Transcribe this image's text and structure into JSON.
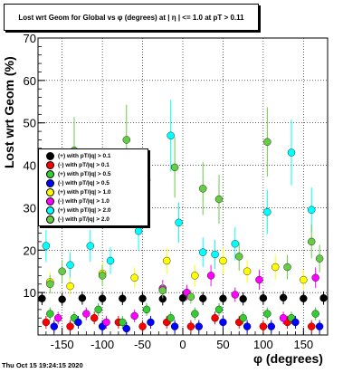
{
  "timestamp": "Thu Oct 15 19:24:15 2020",
  "chart_data": {
    "type": "scatter",
    "title": "Lost wrt Geom for Global vs φ (degrees) at | η | <= 1.0 at pT > 0.11",
    "xlabel": "φ (degrees)",
    "ylabel": "Lost wrt Geom (%)",
    "xlim": [
      -180,
      180
    ],
    "ylim": [
      0,
      70
    ],
    "xticks": [
      -150,
      -100,
      -50,
      0,
      50,
      100,
      150
    ],
    "yticks": [
      10,
      20,
      30,
      40,
      50,
      60,
      70
    ],
    "grid": true,
    "legend_position": "center-left",
    "series": [
      {
        "name": "(+) with pT/|q| > 0.1",
        "color": "#000000",
        "x": [
          -175,
          -150,
          -125,
          -100,
          -75,
          -50,
          -25,
          0,
          25,
          50,
          75,
          100,
          125,
          150,
          175
        ],
        "y": [
          8.6,
          8.4,
          8.7,
          8.6,
          8.6,
          8.6,
          8.5,
          8.7,
          8.6,
          8.6,
          8.5,
          8.7,
          8.8,
          8.6,
          8.7
        ]
      },
      {
        "name": "(-) with pT/|q| > 0.1",
        "color": "#ff0000",
        "x": [
          -170,
          -140,
          -110,
          -80,
          -50,
          -20,
          10,
          40,
          70,
          100,
          130,
          160
        ],
        "y": [
          3,
          2,
          4,
          3,
          2,
          3,
          2,
          4,
          3,
          2,
          3,
          2
        ]
      },
      {
        "name": "(+) with pT/|q| > 0.5",
        "color": "#33cc33",
        "x": [
          -165,
          -135,
          -105,
          -75,
          -45,
          -15,
          15,
          45,
          75,
          105,
          135,
          165
        ],
        "y": [
          5,
          4,
          6,
          3,
          6,
          4,
          5,
          6,
          4,
          5,
          4,
          5
        ]
      },
      {
        "name": "(-) with pT/|q| > 0.5",
        "color": "#0000ff",
        "x": [
          -160,
          -130,
          -100,
          -70,
          -40,
          -10,
          20,
          50,
          80,
          110,
          140,
          170
        ],
        "y": [
          2,
          3,
          2,
          1.5,
          3,
          2,
          2,
          3,
          2,
          2,
          3,
          2
        ]
      },
      {
        "name": "(+) with pT/|q| > 1.0",
        "color": "#ffff00",
        "x": [
          -165,
          -140,
          -100,
          -60,
          -20,
          15,
          50,
          80,
          115,
          150
        ],
        "y": [
          12.5,
          11.5,
          14.5,
          13.5,
          17.5,
          14,
          17.5,
          15,
          16,
          13
        ]
      },
      {
        "name": "(-) with pT/|q| > 1.0",
        "color": "#ff00ff",
        "x": [
          -155,
          -120,
          -95,
          -60,
          -25,
          5,
          35,
          65,
          95,
          125,
          165
        ],
        "y": [
          4,
          5,
          3,
          4.5,
          11,
          10,
          14,
          9.5,
          13,
          4,
          13.5
        ]
      },
      {
        "name": "(+) with pT/|q| > 2.0",
        "color": "#00ffff",
        "x": [
          -170,
          -140,
          -115,
          -90,
          -55,
          -15,
          -5,
          25,
          40,
          65,
          105,
          135,
          160
        ],
        "y": [
          21,
          16.5,
          21,
          17.5,
          24.5,
          47,
          26.5,
          19.5,
          19,
          21.5,
          29,
          43,
          29.5
        ]
      },
      {
        "name": "(-) with pT/|q| > 2.0",
        "color": "#66cc44",
        "x": [
          -165,
          -150,
          -135,
          -100,
          -70,
          -45,
          -25,
          -10,
          10,
          25,
          45,
          70,
          105,
          130,
          160,
          170
        ],
        "y": [
          12,
          15,
          43.5,
          14,
          46,
          36.5,
          10.5,
          39.5,
          9,
          34.5,
          32,
          18.5,
          45.5,
          16,
          22,
          18
        ]
      }
    ]
  }
}
